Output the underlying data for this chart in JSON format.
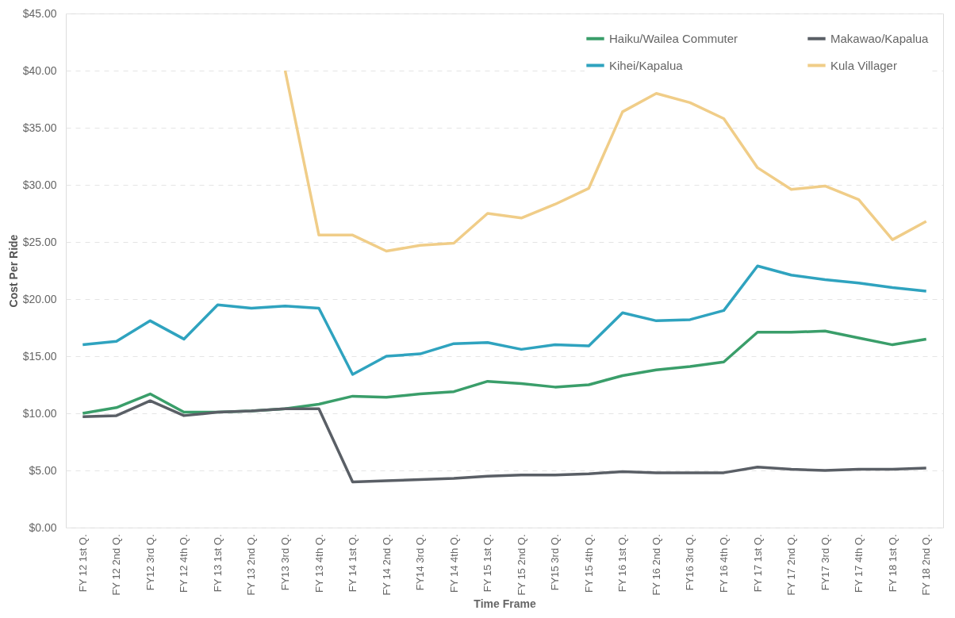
{
  "chart_data": {
    "type": "line",
    "xlabel": "Time Frame",
    "ylabel": "Cost Per Ride",
    "categories": [
      "FY 12 1st Q.",
      "FY 12 2nd Q.",
      "FY12 3rd Q.",
      "FY 12 4th Q.",
      "FY 13 1st Q.",
      "FY 13 2nd Q.",
      "FY13 3rd Q.",
      "FY 13 4th Q.",
      "FY 14 1st Q.",
      "FY 14 2nd Q.",
      "FY14 3rd Q.",
      "FY 14 4th Q.",
      "FY 15 1st Q.",
      "FY 15 2nd Q.",
      "FY15 3rd Q.",
      "FY 15 4th Q.",
      "FY 16 1st Q.",
      "FY 16 2nd Q.",
      "FY16 3rd Q.",
      "FY 16 4th Q.",
      "FY 17 1st Q.",
      "FY 17 2nd Q.",
      "FY17 3rd Q.",
      "FY 17 4th Q.",
      "FY 18 1st Q.",
      "FY 18 2nd Q."
    ],
    "series": [
      {
        "name": "Haiku/Wailea Commuter",
        "color": "#3a9e6a",
        "values": [
          10.0,
          10.5,
          11.7,
          10.1,
          10.1,
          10.2,
          10.4,
          10.8,
          11.5,
          11.4,
          11.7,
          11.9,
          12.8,
          12.6,
          12.3,
          12.5,
          13.3,
          13.8,
          14.1,
          14.5,
          17.1,
          17.1,
          17.2,
          16.6,
          16.0,
          16.5
        ]
      },
      {
        "name": "Makawao/Kapalua",
        "color": "#5a5f66",
        "values": [
          9.7,
          9.8,
          11.1,
          9.8,
          10.1,
          10.2,
          10.4,
          10.4,
          4.0,
          4.1,
          4.2,
          4.3,
          4.5,
          4.6,
          4.6,
          4.7,
          4.9,
          4.8,
          4.8,
          4.8,
          5.3,
          5.1,
          5.0,
          5.1,
          5.1,
          5.2
        ]
      },
      {
        "name": "Kihei/Kapalua",
        "color": "#2fa3bf",
        "values": [
          16.0,
          16.3,
          18.1,
          16.5,
          19.5,
          19.2,
          19.4,
          19.2,
          13.4,
          15.0,
          15.2,
          16.1,
          16.2,
          15.6,
          16.0,
          15.9,
          18.8,
          18.1,
          18.2,
          19.0,
          22.9,
          22.1,
          21.7,
          21.4,
          21.0,
          20.7
        ]
      },
      {
        "name": "Kula Villager",
        "color": "#f0cd88",
        "values": [
          null,
          null,
          null,
          null,
          null,
          null,
          40.0,
          25.6,
          25.6,
          24.2,
          24.7,
          24.9,
          27.5,
          27.1,
          28.3,
          29.7,
          36.4,
          38.0,
          37.2,
          35.8,
          31.5,
          29.6,
          29.9,
          28.7,
          25.2,
          26.8
        ]
      }
    ],
    "ylim": [
      0,
      45
    ],
    "yticks": [
      {
        "value": 0,
        "label": "$0.00"
      },
      {
        "value": 5,
        "label": "$5.00"
      },
      {
        "value": 10,
        "label": "$10.00"
      },
      {
        "value": 15,
        "label": "$15.00"
      },
      {
        "value": 20,
        "label": "$20.00"
      },
      {
        "value": 25,
        "label": "$25.00"
      },
      {
        "value": 30,
        "label": "$30.00"
      },
      {
        "value": 35,
        "label": "$35.00"
      },
      {
        "value": 40,
        "label": "$40.00"
      },
      {
        "value": 45,
        "label": "$45.00"
      }
    ],
    "grid": "y",
    "legend": "top right",
    "marker": "none",
    "line_style": "solid"
  }
}
